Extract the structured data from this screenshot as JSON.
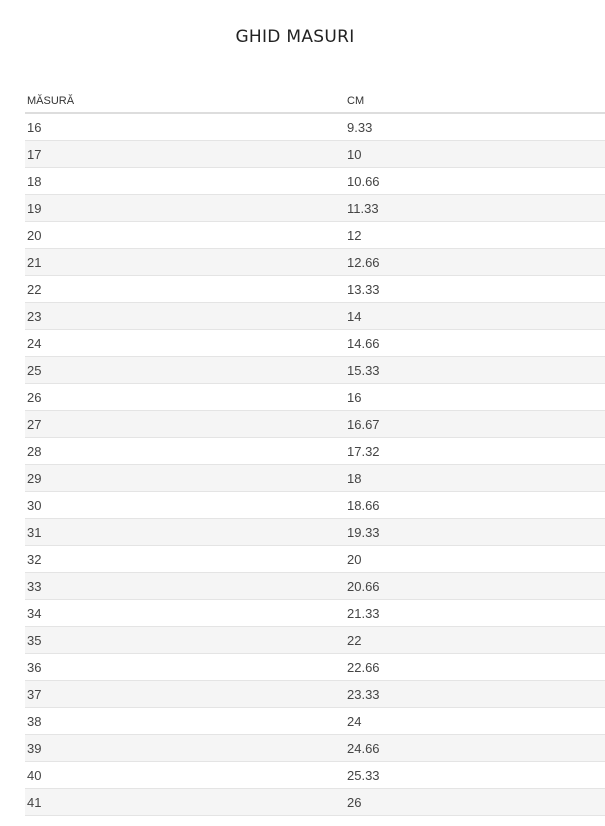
{
  "title": "GHID MASURI",
  "headers": {
    "size": "MĂSURĂ",
    "cm": "CM"
  },
  "rows": [
    {
      "size": "16",
      "cm": "9.33"
    },
    {
      "size": "17",
      "cm": "10"
    },
    {
      "size": "18",
      "cm": "10.66"
    },
    {
      "size": "19",
      "cm": "11.33"
    },
    {
      "size": "20",
      "cm": "12"
    },
    {
      "size": "21",
      "cm": "12.66"
    },
    {
      "size": "22",
      "cm": "13.33"
    },
    {
      "size": "23",
      "cm": "14"
    },
    {
      "size": "24",
      "cm": "14.66"
    },
    {
      "size": "25",
      "cm": "15.33"
    },
    {
      "size": "26",
      "cm": "16"
    },
    {
      "size": "27",
      "cm": "16.67"
    },
    {
      "size": "28",
      "cm": "17.32"
    },
    {
      "size": "29",
      "cm": "18"
    },
    {
      "size": "30",
      "cm": "18.66"
    },
    {
      "size": "31",
      "cm": "19.33"
    },
    {
      "size": "32",
      "cm": "20"
    },
    {
      "size": "33",
      "cm": "20.66"
    },
    {
      "size": "34",
      "cm": "21.33"
    },
    {
      "size": "35",
      "cm": "22"
    },
    {
      "size": "36",
      "cm": "22.66"
    },
    {
      "size": "37",
      "cm": "23.33"
    },
    {
      "size": "38",
      "cm": "24"
    },
    {
      "size": "39",
      "cm": "24.66"
    },
    {
      "size": "40",
      "cm": "25.33"
    },
    {
      "size": "41",
      "cm": "26"
    }
  ]
}
